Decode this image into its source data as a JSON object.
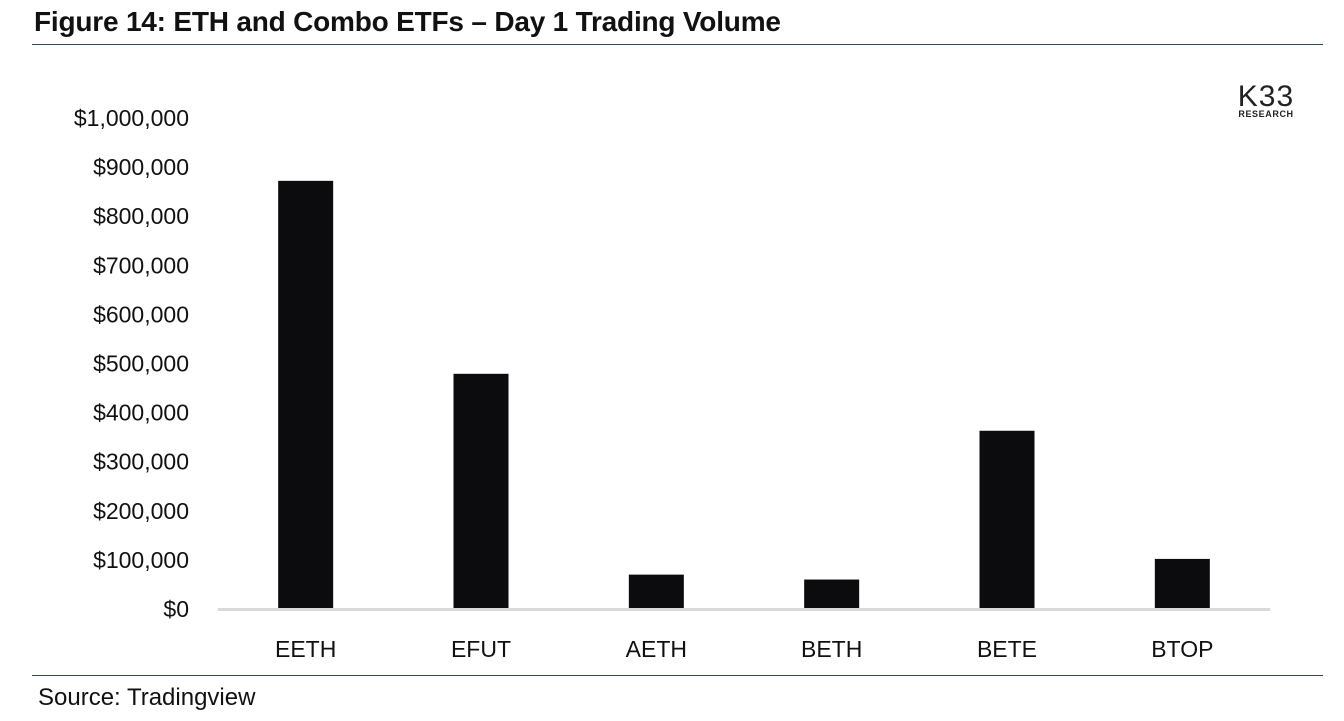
{
  "title": "Figure 14: ETH and Combo ETFs – Day 1 Trading Volume",
  "source": "Source: Tradingview",
  "logo": {
    "main": "K33",
    "sub": "RESEARCH"
  },
  "colors": {
    "bar": "#0c0c0e",
    "axis": "#d9d9d9",
    "rule": "#2e4a5c"
  },
  "chart_data": {
    "type": "bar",
    "title": "Figure 14: ETH and Combo ETFs – Day 1 Trading Volume",
    "xlabel": "",
    "ylabel": "",
    "categories": [
      "EETH",
      "EFUT",
      "AETH",
      "BETH",
      "BETE",
      "BTOP"
    ],
    "values": [
      872000,
      479000,
      70000,
      60000,
      363000,
      102000
    ],
    "ylim": [
      0,
      1000000
    ],
    "yticks": [
      0,
      100000,
      200000,
      300000,
      400000,
      500000,
      600000,
      700000,
      800000,
      900000,
      1000000
    ],
    "ytick_labels": [
      "$0",
      "$100,000",
      "$200,000",
      "$300,000",
      "$400,000",
      "$500,000",
      "$600,000",
      "$700,000",
      "$800,000",
      "$900,000",
      "$1,000,000"
    ],
    "grid": false,
    "legend": "none"
  }
}
